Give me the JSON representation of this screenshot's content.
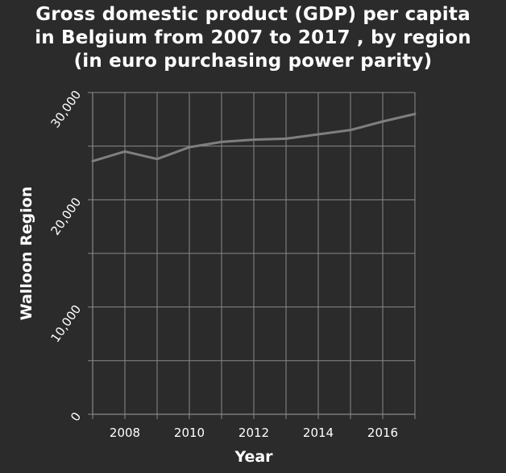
{
  "chart_data": {
    "type": "line",
    "title": "Gross domestic product (GDP) per capita in Belgium from 2007 to 2017 , by region (in euro purchasing power parity)",
    "title_lines": [
      "Gross domestic product (GDP) per capita",
      "in Belgium from 2007 to 2017 , by region",
      "(in euro purchasing power parity)"
    ],
    "xlabel": "Year",
    "ylabel": "Walloon Region",
    "x": [
      2007,
      2008,
      2009,
      2010,
      2011,
      2012,
      2013,
      2014,
      2015,
      2016,
      2017
    ],
    "series": [
      {
        "values": [
          23600,
          24500,
          23800,
          24900,
          25400,
          25600,
          25700,
          26100,
          26500,
          27300,
          28000
        ]
      }
    ],
    "xlim": [
      2007,
      2017
    ],
    "ylim": [
      0,
      30000
    ],
    "xticks": [
      2008,
      2010,
      2012,
      2014,
      2016
    ],
    "xtick_labels": [
      "2008",
      "2010",
      "2012",
      "2014",
      "2016"
    ],
    "yticks": [
      0,
      10000,
      20000,
      30000
    ],
    "ytick_labels": [
      "0",
      "10,000",
      "20,000",
      "30,000"
    ],
    "minor_xgrid": [
      2007,
      2008,
      2009,
      2010,
      2011,
      2012,
      2013,
      2014,
      2015,
      2016,
      2017
    ],
    "minor_ygrid": [
      0,
      5000,
      10000,
      15000,
      20000,
      25000,
      30000
    ],
    "grid": true,
    "colors": {
      "background": "#2b2b2b",
      "grid": "#8a8a8a",
      "line": "#7f7f7f",
      "text": "#ffffff"
    }
  }
}
